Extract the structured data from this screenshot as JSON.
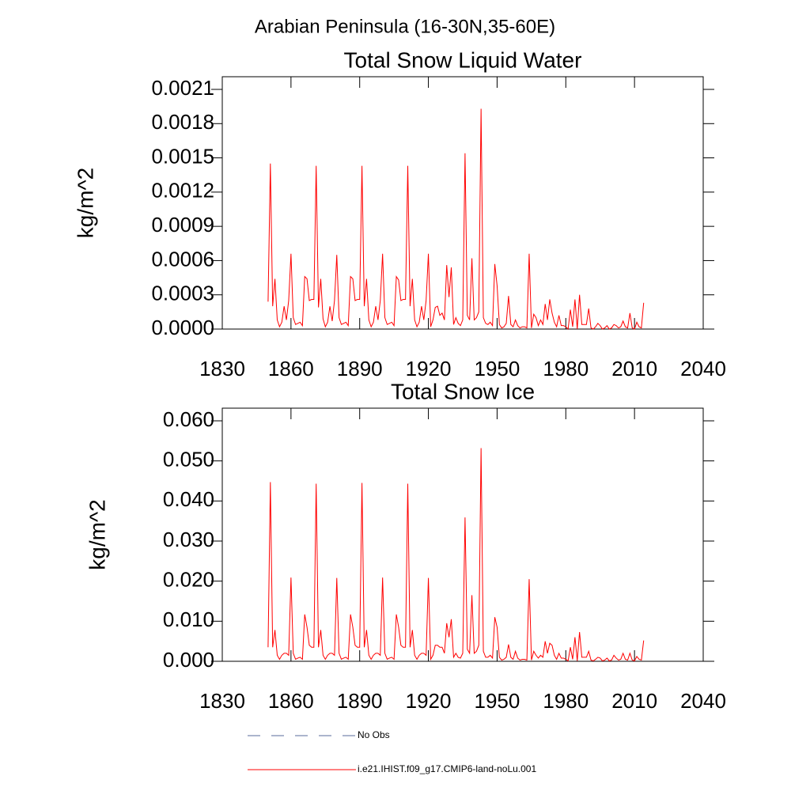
{
  "title": "Arabian Peninsula (16-30N,35-60E)",
  "legend": [
    {
      "name": "No Obs",
      "color": "#5a6b9b",
      "line_style": "dashed"
    }
  ],
  "chart_data": [
    {
      "type": "line",
      "title": "Total Snow Liquid Water",
      "y_label": "kg/m^2",
      "xlim": [
        1830,
        2040
      ],
      "xticks": [
        1830,
        1860,
        1890,
        1920,
        1950,
        1980,
        2010,
        2040
      ],
      "ylim": [
        0,
        0.0021
      ],
      "yticks": [
        {
          "value": 0,
          "label": "0.0000"
        },
        0.0003,
        0.0006,
        0.0009,
        0.0012,
        0.0015,
        0.0018,
        0.0021
      ],
      "x": [
        1850,
        1851,
        1852,
        1853,
        1854,
        1855,
        1856,
        1857,
        1858,
        1859,
        1860,
        1861,
        1862,
        1863,
        1864,
        1865,
        1866,
        1867,
        1868,
        1869,
        1870,
        1871,
        1872,
        1873,
        1874,
        1875,
        1876,
        1877,
        1878,
        1879,
        1880,
        1881,
        1882,
        1883,
        1884,
        1885,
        1886,
        1887,
        1888,
        1889,
        1890,
        1891,
        1892,
        1893,
        1894,
        1895,
        1896,
        1897,
        1898,
        1899,
        1900,
        1901,
        1902,
        1903,
        1904,
        1905,
        1906,
        1907,
        1908,
        1909,
        1910,
        1911,
        1912,
        1913,
        1914,
        1915,
        1916,
        1917,
        1918,
        1919,
        1920,
        1921,
        1922,
        1923,
        1924,
        1925,
        1926,
        1927,
        1928,
        1929,
        1930,
        1931,
        1932,
        1933,
        1934,
        1935,
        1936,
        1937,
        1938,
        1939,
        1940,
        1941,
        1942,
        1943,
        1944,
        1945,
        1946,
        1947,
        1948,
        1949,
        1950,
        1951,
        1952,
        1953,
        1954,
        1955,
        1956,
        1957,
        1958,
        1959,
        1960,
        1961,
        1962,
        1963,
        1964,
        1965,
        1966,
        1967,
        1968,
        1969,
        1970,
        1971,
        1972,
        1973,
        1974,
        1975,
        1976,
        1977,
        1978,
        1979,
        1980,
        1981,
        1982,
        1983,
        1984,
        1985,
        1986,
        1987,
        1988,
        1989,
        1990,
        1991,
        1992,
        1993,
        1994,
        1995,
        1996,
        1997,
        1998,
        1999,
        2000,
        2001,
        2002,
        2003,
        2004,
        2005,
        2006,
        2007,
        2008,
        2009,
        2010,
        2011,
        2012,
        2013,
        2014
      ],
      "series": [
        {
          "name": "i.e21.IHIST.f09_g17.CMIP6-land-noLu.001",
          "color": "#ff0000",
          "values": [
            0.00024,
            0.00145,
            0.0002,
            0.00044,
            8e-05,
            2e-05,
            6e-05,
            0.0002,
            8e-05,
            0.00025,
            0.00066,
            0.0001,
            4e-05,
            5e-05,
            6e-05,
            3e-05,
            0.00046,
            0.00044,
            0.00025,
            0.00026,
            0.00026,
            0.00143,
            0.00019,
            0.00044,
            9e-05,
            2e-05,
            6e-05,
            0.0002,
            7e-05,
            0.00025,
            0.00065,
            0.0001,
            4e-05,
            5e-05,
            6e-05,
            3e-05,
            0.00046,
            0.00044,
            0.00025,
            0.00026,
            0.00026,
            0.00143,
            0.0002,
            0.00044,
            8e-05,
            2e-05,
            6e-05,
            0.0002,
            8e-05,
            0.00025,
            0.00066,
            0.0001,
            4e-05,
            5e-05,
            6e-05,
            3e-05,
            0.00046,
            0.00043,
            0.00025,
            0.00026,
            0.00026,
            0.00143,
            0.0002,
            0.00044,
            8e-05,
            2e-05,
            6e-05,
            0.0002,
            8e-05,
            0.00025,
            0.00066,
            2e-05,
            8e-05,
            0.00019,
            0.0002,
            0.00012,
            0.00014,
            8e-05,
            0.00056,
            0.00028,
            0.00054,
            4e-05,
            0.0001,
            5e-05,
            3e-05,
            8e-05,
            0.00154,
            0.00012,
            8e-05,
            0.00062,
            8e-05,
            0.0001,
            0.00015,
            0.00193,
            0.0001,
            5e-05,
            4e-05,
            6e-05,
            3e-05,
            0.00057,
            0.00038,
            4e-05,
            1e-05,
            2e-05,
            5e-05,
            0.00029,
            4e-05,
            2e-05,
            8e-05,
            3e-05,
            1e-05,
            2e-05,
            2e-05,
            1e-05,
            0.00066,
            1e-05,
            0.00013,
            0.0001,
            3e-05,
            8e-05,
            4e-05,
            0.00022,
            8e-05,
            0.00026,
            0.00014,
            6e-05,
            2e-05,
            0.00012,
            3e-05,
            3e-05,
            2e-05,
            0,
            0.00017,
            2e-05,
            0.00026,
            0,
            0.0003,
            4e-05,
            4e-05,
            4e-05,
            0.00018,
            1e-05,
            0,
            2e-05,
            5e-05,
            3e-05,
            0,
            1e-05,
            3e-05,
            0,
            1e-05,
            4e-05,
            3e-05,
            1e-05,
            2e-05,
            7e-05,
            2e-05,
            1e-05,
            0.00014,
            1e-05,
            0,
            6e-05,
            2e-05,
            1e-05,
            0.00023
          ]
        }
      ]
    },
    {
      "type": "line",
      "title": "Total Snow Ice",
      "y_label": "kg/m^2",
      "xlim": [
        1830,
        2040
      ],
      "xticks": [
        1830,
        1860,
        1890,
        1920,
        1950,
        1980,
        2010,
        2040
      ],
      "ylim": [
        0,
        0.06
      ],
      "yticks": [
        {
          "value": 0,
          "label": "0.000"
        },
        {
          "value": 0.01,
          "label": "0.010"
        },
        {
          "value": 0.02,
          "label": "0.020"
        },
        {
          "value": 0.03,
          "label": "0.030"
        },
        {
          "value": 0.04,
          "label": "0.040"
        },
        {
          "value": 0.05,
          "label": "0.050"
        },
        {
          "value": 0.06,
          "label": "0.060"
        }
      ],
      "x": [
        1850,
        1851,
        1852,
        1853,
        1854,
        1855,
        1856,
        1857,
        1858,
        1859,
        1860,
        1861,
        1862,
        1863,
        1864,
        1865,
        1866,
        1867,
        1868,
        1869,
        1870,
        1871,
        1872,
        1873,
        1874,
        1875,
        1876,
        1877,
        1878,
        1879,
        1880,
        1881,
        1882,
        1883,
        1884,
        1885,
        1886,
        1887,
        1888,
        1889,
        1890,
        1891,
        1892,
        1893,
        1894,
        1895,
        1896,
        1897,
        1898,
        1899,
        1900,
        1901,
        1902,
        1903,
        1904,
        1905,
        1906,
        1907,
        1908,
        1909,
        1910,
        1911,
        1912,
        1913,
        1914,
        1915,
        1916,
        1917,
        1918,
        1919,
        1920,
        1921,
        1922,
        1923,
        1924,
        1925,
        1926,
        1927,
        1928,
        1929,
        1930,
        1931,
        1932,
        1933,
        1934,
        1935,
        1936,
        1937,
        1938,
        1939,
        1940,
        1941,
        1942,
        1943,
        1944,
        1945,
        1946,
        1947,
        1948,
        1949,
        1950,
        1951,
        1952,
        1953,
        1954,
        1955,
        1956,
        1957,
        1958,
        1959,
        1960,
        1961,
        1962,
        1963,
        1964,
        1965,
        1966,
        1967,
        1968,
        1969,
        1970,
        1971,
        1972,
        1973,
        1974,
        1975,
        1976,
        1977,
        1978,
        1979,
        1980,
        1981,
        1982,
        1983,
        1984,
        1985,
        1986,
        1987,
        1988,
        1989,
        1990,
        1991,
        1992,
        1993,
        1994,
        1995,
        1996,
        1997,
        1998,
        1999,
        2000,
        2001,
        2002,
        2003,
        2004,
        2005,
        2006,
        2007,
        2008,
        2009,
        2010,
        2011,
        2012,
        2013,
        2014
      ],
      "series": [
        {
          "name": "i.e21.IHIST.f09_g17.CMIP6-land-noLu.001",
          "color": "#ff0000",
          "values": [
            0.0035,
            0.0447,
            0.0035,
            0.0078,
            0.0015,
            0.0005,
            0.0015,
            0.002,
            0.002,
            0.0015,
            0.0209,
            0.002,
            0.0005,
            0.0008,
            0.001,
            0.0005,
            0.0117,
            0.0085,
            0.004,
            0.0035,
            0.0035,
            0.0443,
            0.0035,
            0.0078,
            0.0015,
            0.0005,
            0.0015,
            0.002,
            0.002,
            0.0015,
            0.0208,
            0.002,
            0.0005,
            0.0008,
            0.001,
            0.0005,
            0.0117,
            0.0085,
            0.004,
            0.0035,
            0.0035,
            0.0445,
            0.0035,
            0.0078,
            0.0015,
            0.0005,
            0.0015,
            0.002,
            0.002,
            0.0015,
            0.0209,
            0.002,
            0.0005,
            0.0008,
            0.001,
            0.0005,
            0.0117,
            0.0085,
            0.004,
            0.0035,
            0.0035,
            0.0443,
            0.0035,
            0.0078,
            0.0015,
            0.0005,
            0.0015,
            0.002,
            0.002,
            0.0015,
            0.0208,
            0.0005,
            0.0015,
            0.004,
            0.004,
            0.0035,
            0.0035,
            0.002,
            0.0095,
            0.006,
            0.0105,
            0.001,
            0.002,
            0.001,
            0.0008,
            0.002,
            0.0359,
            0.003,
            0.002,
            0.0165,
            0.002,
            0.0025,
            0.004,
            0.0532,
            0.0025,
            0.001,
            0.001,
            0.0015,
            0.0008,
            0.011,
            0.0085,
            0.001,
            0.0003,
            0.0005,
            0.001,
            0.0042,
            0.001,
            0.0005,
            0.0025,
            0.0008,
            0.0003,
            0.0005,
            0.0005,
            0.0003,
            0.0205,
            0.0003,
            0.0025,
            0.0015,
            0.0008,
            0.0015,
            0.001,
            0.005,
            0.002,
            0.0045,
            0.004,
            0.0015,
            0.0005,
            0.002,
            0.0008,
            0.0008,
            0.0005,
            0.0001,
            0.0035,
            0.0005,
            0.006,
            0.0001,
            0.0073,
            0.001,
            0.001,
            0.001,
            0.0025,
            0.0003,
            0.0001,
            0.0005,
            0.001,
            0.0008,
            0.0001,
            0.0003,
            0.0008,
            0.0001,
            0.0003,
            0.0015,
            0.0008,
            0.0003,
            0.0005,
            0.002,
            0.0005,
            0.0003,
            0.002,
            0.0003,
            0.0001,
            0.0012,
            0.0005,
            0.0003,
            0.0052
          ]
        }
      ]
    }
  ]
}
